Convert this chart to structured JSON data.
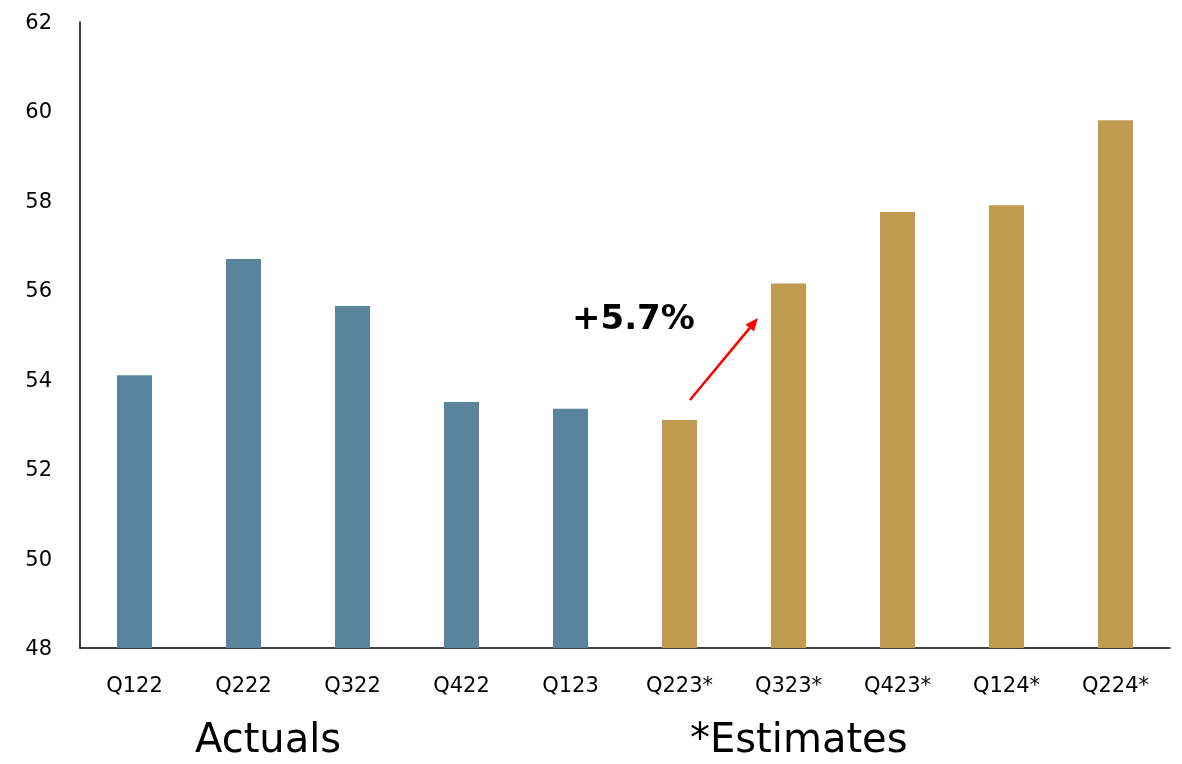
{
  "chart_data": {
    "type": "bar",
    "categories": [
      "Q122",
      "Q222",
      "Q322",
      "Q422",
      "Q123",
      "Q223*",
      "Q323*",
      "Q423*",
      "Q124*",
      "Q224*"
    ],
    "values": [
      54.1,
      56.7,
      55.65,
      53.5,
      53.35,
      53.1,
      56.15,
      57.75,
      57.9,
      59.8
    ],
    "colors": [
      "#5a849c",
      "#5a849c",
      "#5a849c",
      "#5a849c",
      "#5a849c",
      "#c09a4e",
      "#c09a4e",
      "#c09a4e",
      "#c09a4e",
      "#c09a4e"
    ],
    "ylim": [
      48,
      62
    ],
    "yticks": [
      48,
      50,
      52,
      54,
      56,
      58,
      60,
      62
    ],
    "grid": false,
    "annotations": [
      "+5.7%",
      "Actuals",
      "*Estimates"
    ]
  }
}
